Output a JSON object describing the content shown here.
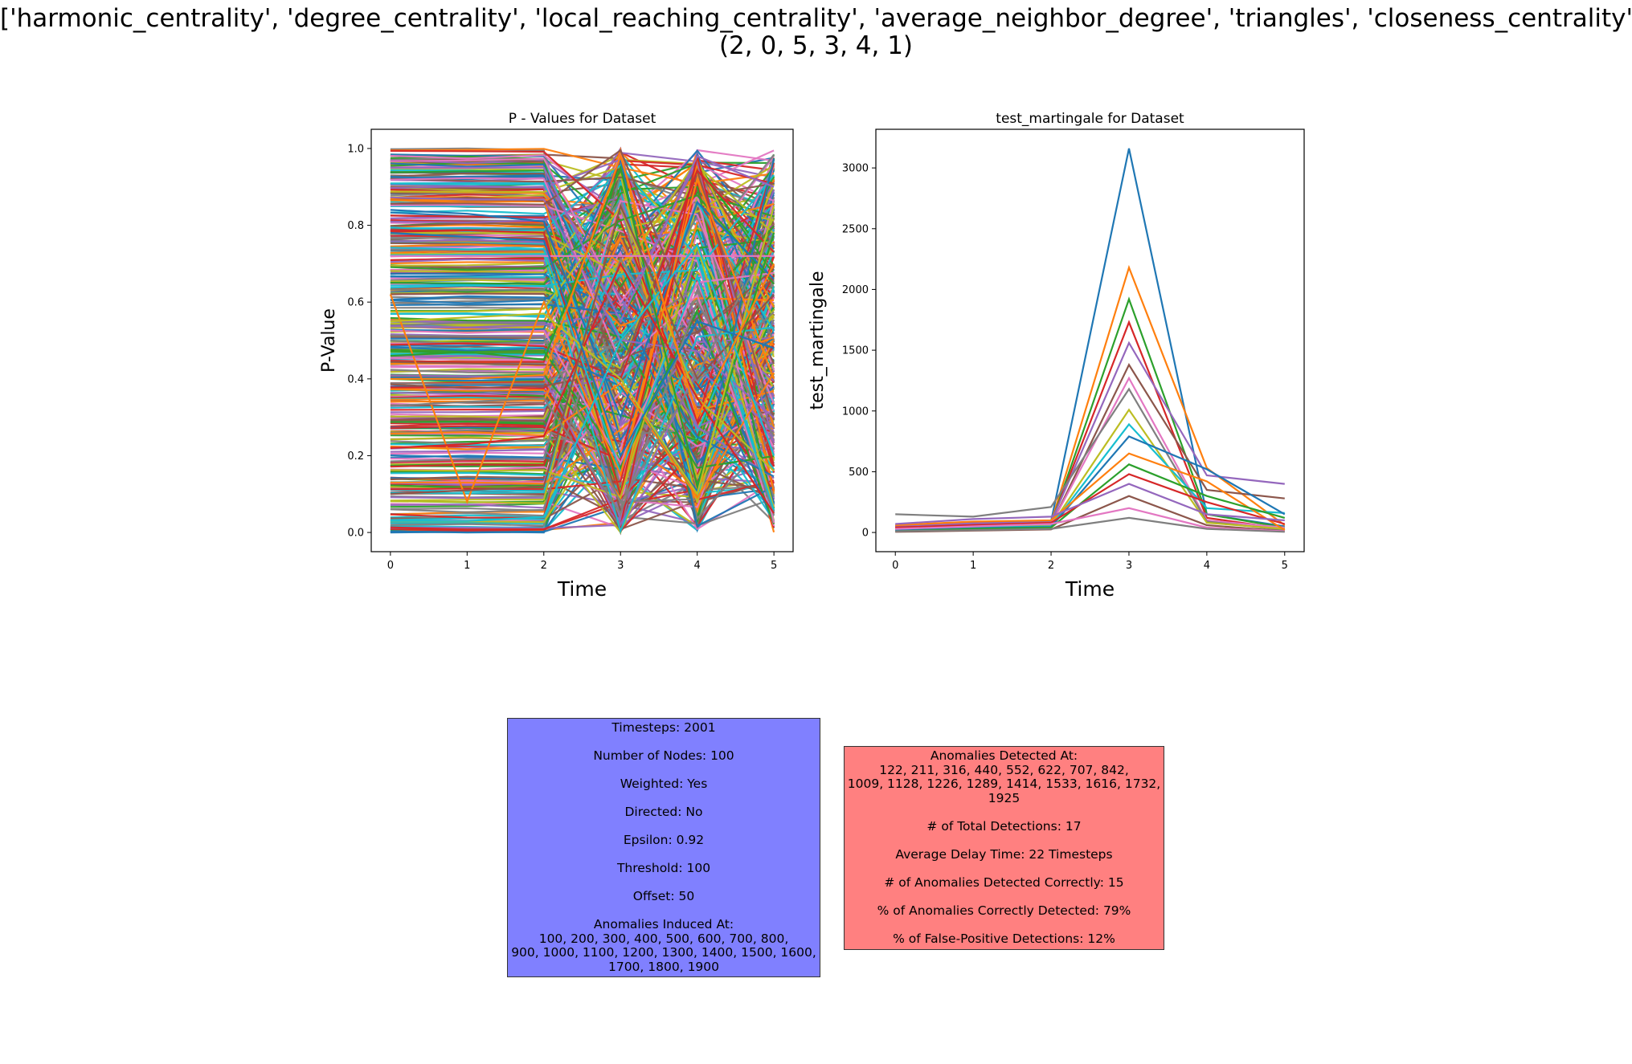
{
  "figure": {
    "suptitle_line1": "['harmonic_centrality', 'degree_centrality', 'local_reaching_centrality', 'average_neighbor_degree', 'triangles', 'closeness_centrality']",
    "suptitle_line2": "(2, 0, 5, 3, 4, 1)"
  },
  "chart_data": [
    {
      "type": "line",
      "title": "P - Values for Dataset",
      "xlabel": "Time",
      "ylabel": "P-Value",
      "x": [
        0,
        1,
        2,
        3,
        4,
        5
      ],
      "xlim": [
        -0.25,
        5.25
      ],
      "ylim": [
        -0.05,
        1.05
      ],
      "xticks": [
        "0",
        "1",
        "2",
        "3",
        "4",
        "5"
      ],
      "yticks": [
        "0.0",
        "0.2",
        "0.4",
        "0.6",
        "0.8",
        "1.0"
      ],
      "grid": false,
      "note": "hundreds of overlapping series with p-values spanning 0 to 1; stable for t=0..2, scattered for t=3..5",
      "series": [
        {
          "values": [
            0.84,
            0.83,
            0.81,
            0.3,
            0.86,
            0.66
          ]
        },
        {
          "values": [
            0.62,
            0.08,
            0.6,
            0.15,
            0.92,
            0.4
          ]
        },
        {
          "values": [
            0.46,
            0.47,
            0.45,
            0.95,
            0.12,
            0.78
          ]
        },
        {
          "values": [
            0.22,
            0.23,
            0.25,
            0.7,
            0.35,
            0.05
          ]
        },
        {
          "values": [
            0.95,
            0.95,
            0.95,
            0.55,
            0.98,
            0.9
          ]
        },
        {
          "values": [
            0.1,
            0.11,
            0.12,
            0.85,
            0.4,
            0.62
          ]
        },
        {
          "values": [
            0.72,
            0.72,
            0.72,
            0.72,
            0.72,
            0.72
          ]
        },
        {
          "values": [
            0.33,
            0.34,
            0.35,
            0.05,
            0.6,
            0.25
          ]
        },
        {
          "values": [
            0.55,
            0.56,
            0.57,
            0.4,
            0.1,
            0.85
          ]
        },
        {
          "values": [
            0.03,
            0.03,
            0.04,
            0.5,
            0.75,
            0.2
          ]
        },
        {
          "values": [
            0.78,
            0.77,
            0.76,
            0.2,
            0.55,
            0.48
          ]
        },
        {
          "values": [
            0.4,
            0.4,
            0.41,
            0.98,
            0.3,
            0.7
          ]
        }
      ]
    },
    {
      "type": "line",
      "title": "test_martingale for Dataset",
      "xlabel": "Time",
      "ylabel": "test_martingale",
      "x": [
        0,
        1,
        2,
        3,
        4,
        5
      ],
      "xlim": [
        -0.25,
        5.25
      ],
      "ylim": [
        -158,
        3318
      ],
      "xticks": [
        "0",
        "1",
        "2",
        "3",
        "4",
        "5"
      ],
      "yticks": [
        "0",
        "500",
        "1000",
        "1500",
        "2000",
        "2500",
        "3000"
      ],
      "grid": false,
      "series": [
        {
          "values": [
            60,
            80,
            90,
            3160,
            150,
            50
          ]
        },
        {
          "values": [
            50,
            70,
            80,
            2180,
            530,
            60
          ]
        },
        {
          "values": [
            40,
            60,
            70,
            1920,
            150,
            40
          ]
        },
        {
          "values": [
            45,
            65,
            75,
            1730,
            120,
            30
          ]
        },
        {
          "values": [
            55,
            75,
            85,
            1560,
            470,
            400
          ]
        },
        {
          "values": [
            30,
            50,
            60,
            1380,
            350,
            280
          ]
        },
        {
          "values": [
            35,
            55,
            65,
            1270,
            100,
            40
          ]
        },
        {
          "values": [
            150,
            130,
            210,
            1180,
            90,
            20
          ]
        },
        {
          "values": [
            25,
            45,
            55,
            1010,
            80,
            30
          ]
        },
        {
          "values": [
            20,
            40,
            50,
            890,
            200,
            160
          ]
        },
        {
          "values": [
            15,
            35,
            45,
            790,
            520,
            150
          ]
        },
        {
          "values": [
            60,
            90,
            100,
            650,
            420,
            20
          ]
        },
        {
          "values": [
            10,
            30,
            40,
            560,
            300,
            120
          ]
        },
        {
          "values": [
            40,
            60,
            80,
            480,
            250,
            70
          ]
        },
        {
          "values": [
            70,
            110,
            130,
            400,
            150,
            100
          ]
        },
        {
          "values": [
            5,
            15,
            25,
            300,
            60,
            10
          ]
        },
        {
          "values": [
            30,
            50,
            70,
            200,
            40,
            10
          ]
        },
        {
          "values": [
            10,
            20,
            30,
            120,
            30,
            5
          ]
        }
      ]
    }
  ],
  "params_box": {
    "items": [
      "Timesteps: 2001",
      "Number of Nodes: 100",
      "Weighted: Yes",
      "Directed: No",
      "Epsilon: 0.92",
      "Threshold: 100",
      "Offset: 50",
      "Anomalies Induced At:\n100, 200, 300, 400, 500, 600, 700, 800,\n900, 1000, 1100, 1200, 1300, 1400, 1500, 1600,\n1700, 1800, 1900"
    ]
  },
  "results_box": {
    "items": [
      "Anomalies Detected At:\n122, 211, 316, 440, 552, 622, 707, 842,\n1009, 1128, 1226, 1289, 1414, 1533, 1616, 1732,\n1925",
      "# of Total Detections: 17",
      "Average Delay Time: 22 Timesteps",
      "# of Anomalies Detected Correctly: 15",
      "% of Anomalies Correctly Detected: 79%",
      "% of False-Positive Detections: 12%"
    ]
  },
  "colors": {
    "series_cycle": [
      "#1f77b4",
      "#ff7f0e",
      "#2ca02c",
      "#d62728",
      "#9467bd",
      "#8c564b",
      "#e377c2",
      "#7f7f7f",
      "#bcbd22",
      "#17becf"
    ],
    "params_box_bg": "#8080ff",
    "results_box_bg": "#ff8080"
  }
}
